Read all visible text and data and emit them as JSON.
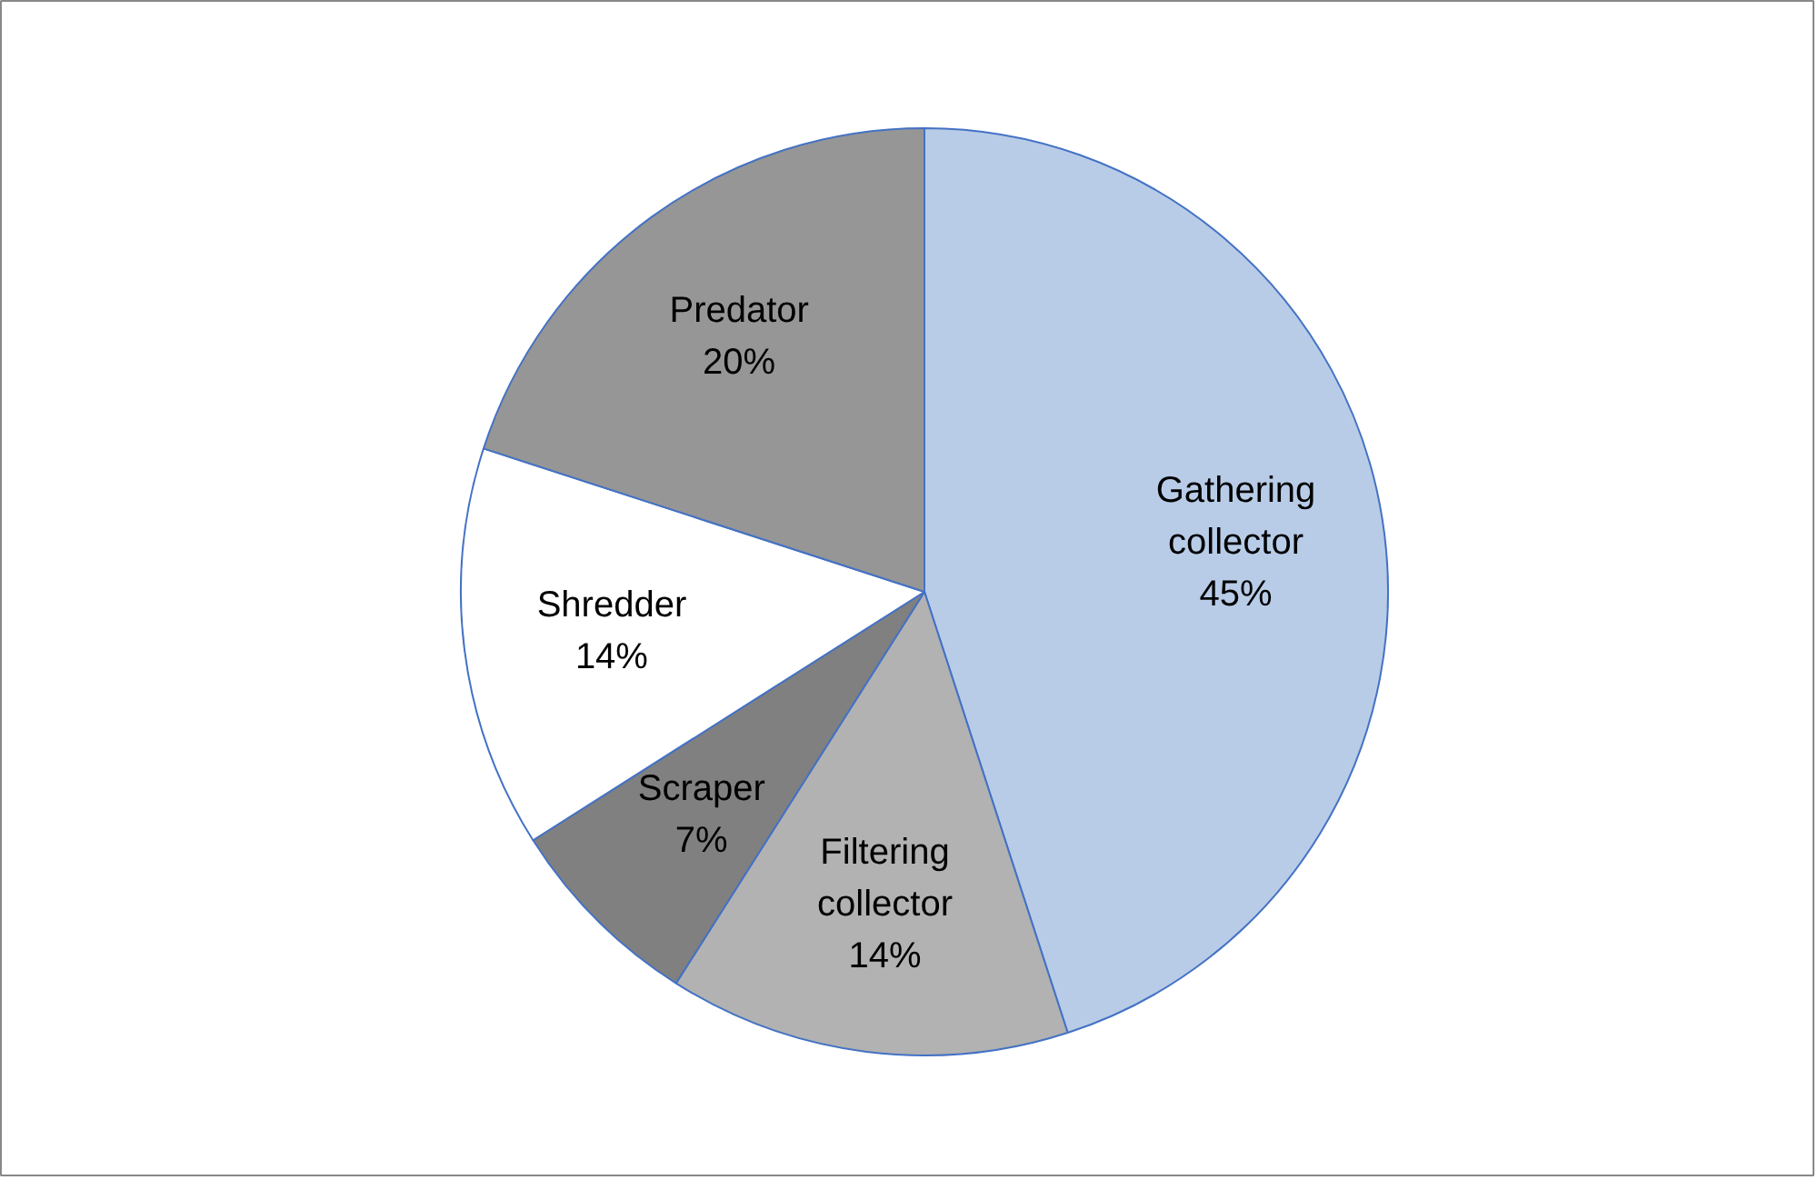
{
  "chart_data": {
    "type": "pie",
    "categories": [
      "Gathering collector",
      "Filtering collector",
      "Scraper",
      "Shredder",
      "Predator"
    ],
    "values": [
      45,
      14,
      7,
      14,
      20
    ],
    "colors": [
      "#b8cce8",
      "#b2b2b2",
      "#808080",
      "#ffffff",
      "#969696"
    ],
    "value_labels": [
      "45%",
      "14%",
      "7%",
      "14%",
      "20%"
    ]
  }
}
